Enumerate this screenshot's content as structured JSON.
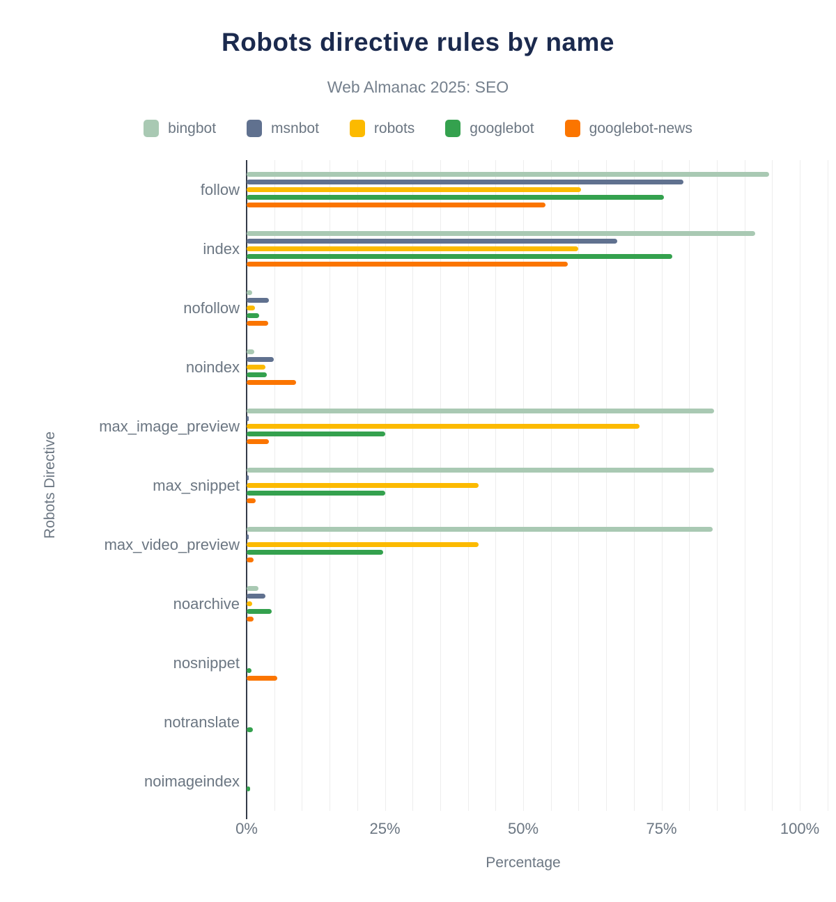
{
  "header": {
    "title": "Robots directive rules by name",
    "subtitle": "Web Almanac 2025: SEO"
  },
  "chart_data": {
    "type": "bar",
    "orientation": "horizontal",
    "title": "Robots directive rules by name",
    "subtitle": "Web Almanac 2025: SEO",
    "xlabel": "Percentage",
    "ylabel": "Robots Directive",
    "xlim": [
      0,
      105
    ],
    "x_ticks": [
      {
        "value": 0,
        "label": "0%"
      },
      {
        "value": 25,
        "label": "25%"
      },
      {
        "value": 50,
        "label": "50%"
      },
      {
        "value": 75,
        "label": "75%"
      },
      {
        "value": 100,
        "label": "100%"
      }
    ],
    "grid_step_percent": 5,
    "grid_max_percent": 105,
    "legend_position": "top",
    "categories": [
      "follow",
      "index",
      "nofollow",
      "noindex",
      "max_image_preview",
      "max_snippet",
      "max_video_preview",
      "noarchive",
      "nosnippet",
      "notranslate",
      "noimageindex"
    ],
    "series": [
      {
        "name": "bingbot",
        "color": "#a9c9b3",
        "values": [
          94.5,
          92.0,
          1.0,
          1.4,
          84.5,
          84.5,
          84.3,
          2.2,
          0,
          0,
          0
        ]
      },
      {
        "name": "msnbot",
        "color": "#60718f",
        "values": [
          79.0,
          67.0,
          4.0,
          4.9,
          0.4,
          0.4,
          0.4,
          3.4,
          0,
          0,
          0
        ]
      },
      {
        "name": "robots",
        "color": "#fcba00",
        "values": [
          60.5,
          60.0,
          1.5,
          3.4,
          71.0,
          42.0,
          42.0,
          1.0,
          0,
          0,
          0
        ]
      },
      {
        "name": "googlebot",
        "color": "#34a14e",
        "values": [
          75.5,
          77.0,
          2.3,
          3.7,
          25.0,
          25.0,
          24.7,
          4.5,
          0.9,
          1.1,
          0.6
        ]
      },
      {
        "name": "googlebot-news",
        "color": "#fb7500",
        "values": [
          54.0,
          58.0,
          3.9,
          9.0,
          4.0,
          1.7,
          1.2,
          1.2,
          5.5,
          0,
          0
        ]
      }
    ]
  },
  "layout_colors": {
    "title": "#1b2a4e",
    "subtitle": "#75808d",
    "axis_text": "#6b7682",
    "axis_line": "#343b48",
    "gridline": "#ededed",
    "background": "#ffffff"
  }
}
